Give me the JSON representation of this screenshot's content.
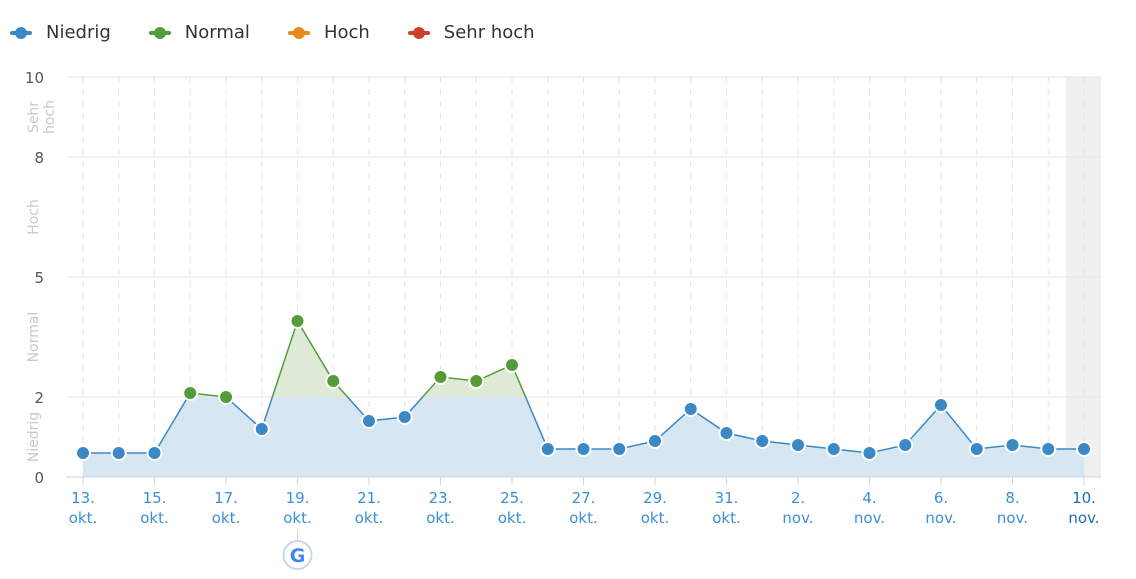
{
  "chart_data": {
    "type": "line",
    "legend": [
      {
        "name": "Niedrig",
        "color": "#3a88c6"
      },
      {
        "name": "Normal",
        "color": "#549c3a"
      },
      {
        "name": "Hoch",
        "color": "#e68a1f"
      },
      {
        "name": "Sehr hoch",
        "color": "#c8422f"
      }
    ],
    "ylim": [
      0,
      10
    ],
    "yticks": [
      "0",
      "2",
      "5",
      "8",
      "10"
    ],
    "ytick_values": [
      0,
      2,
      5,
      8,
      10
    ],
    "bands": [
      {
        "label": "Niedrig",
        "from": 0,
        "to": 2
      },
      {
        "label": "Normal",
        "from": 2,
        "to": 5
      },
      {
        "label": "Hoch",
        "from": 5,
        "to": 8
      },
      {
        "label": "Sehr",
        "label2": "hoch",
        "from": 8,
        "to": 10
      }
    ],
    "x_labels": [
      [
        "13.",
        "okt."
      ],
      [
        "15.",
        "okt."
      ],
      [
        "17.",
        "okt."
      ],
      [
        "19.",
        "okt."
      ],
      [
        "21.",
        "okt."
      ],
      [
        "23.",
        "okt."
      ],
      [
        "25.",
        "okt."
      ],
      [
        "27.",
        "okt."
      ],
      [
        "29.",
        "okt."
      ],
      [
        "31.",
        "okt."
      ],
      [
        "2.",
        "nov."
      ],
      [
        "4.",
        "nov."
      ],
      [
        "6.",
        "nov."
      ],
      [
        "8.",
        "nov."
      ],
      [
        "10.",
        "nov."
      ]
    ],
    "values": [
      0.6,
      0.6,
      0.6,
      2.1,
      2.0,
      1.2,
      3.9,
      2.4,
      1.4,
      1.5,
      2.5,
      2.4,
      2.8,
      0.7,
      0.7,
      0.7,
      0.9,
      1.7,
      1.1,
      0.9,
      0.8,
      0.7,
      0.6,
      0.8,
      1.8,
      0.7,
      0.8,
      0.7,
      0.7
    ],
    "annotation": "google-update-marker on 19. okt.",
    "highlighted_index": 28
  }
}
